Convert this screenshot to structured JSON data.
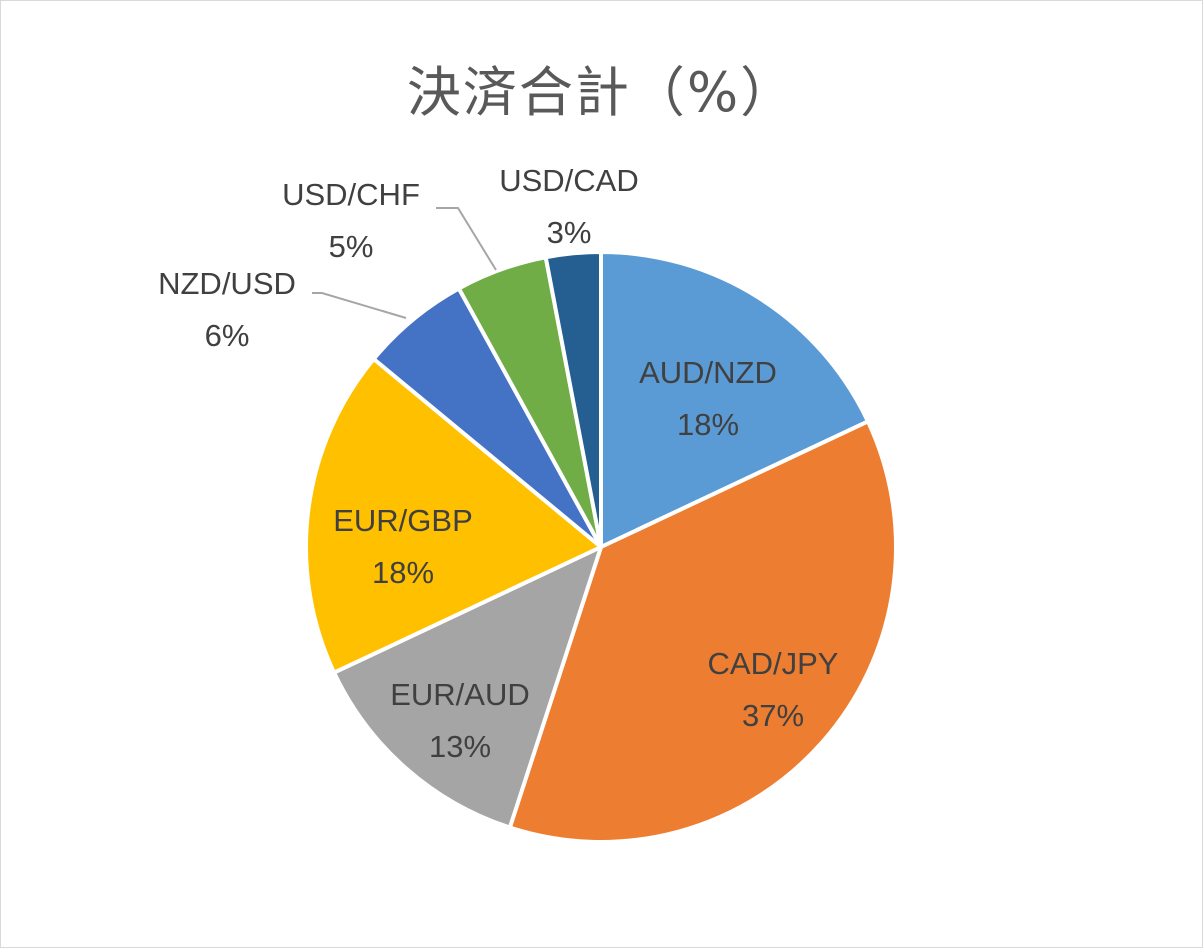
{
  "chart_data": {
    "type": "pie",
    "title": "決済合計（%）",
    "slices": [
      {
        "label": "AUD/NZD",
        "value": 18,
        "value_label": "18%",
        "color": "#5b9bd5"
      },
      {
        "label": "CAD/JPY",
        "value": 37,
        "value_label": "37%",
        "color": "#ed7d31"
      },
      {
        "label": "EUR/AUD",
        "value": 13,
        "value_label": "13%",
        "color": "#a5a5a5"
      },
      {
        "label": "EUR/GBP",
        "value": 18,
        "value_label": "18%",
        "color": "#ffc000"
      },
      {
        "label": "NZD/USD",
        "value": 6,
        "value_label": "6%",
        "color": "#4472c4"
      },
      {
        "label": "USD/CHF",
        "value": 5,
        "value_label": "5%",
        "color": "#70ad47"
      },
      {
        "label": "USD/CAD",
        "value": 3,
        "value_label": "3%",
        "color": "#255e91"
      }
    ],
    "legend": "none",
    "data_labels": "category-and-percent"
  }
}
